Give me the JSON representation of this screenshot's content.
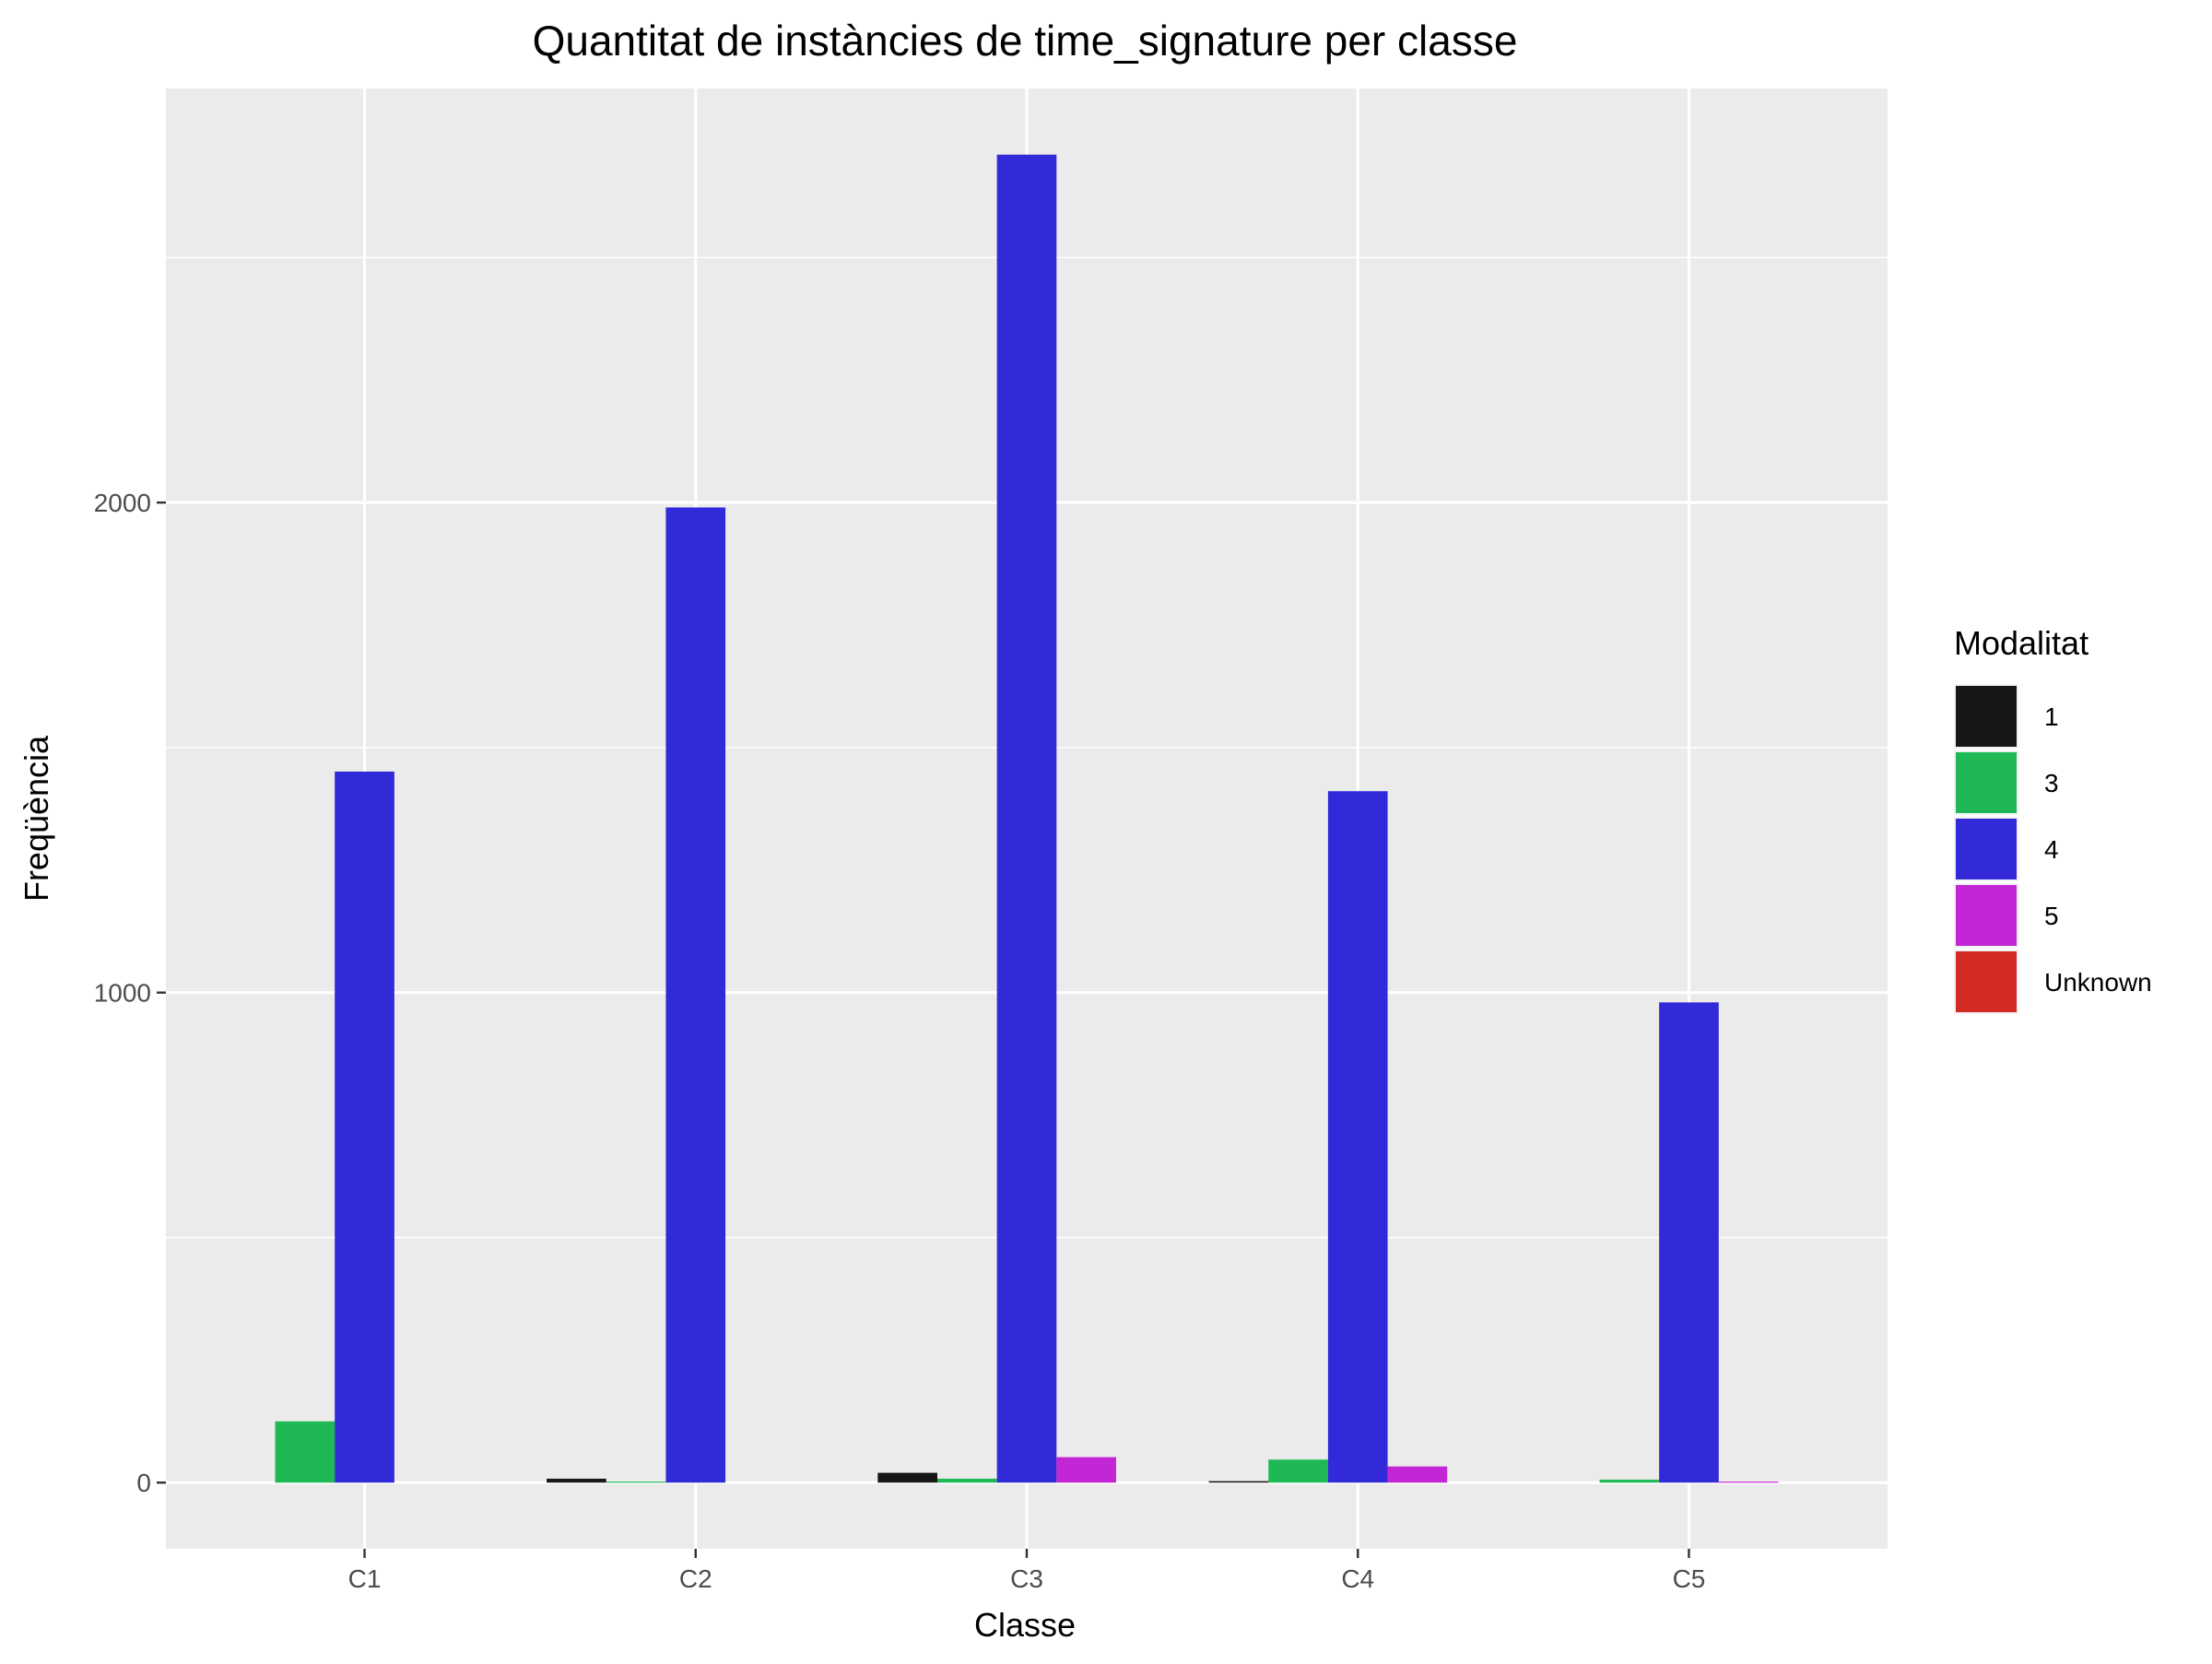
{
  "chart_data": {
    "type": "bar",
    "title": "Quantitat de instàncies de time_signature per classe",
    "xlabel": "Classe",
    "ylabel": "Freqüència",
    "categories": [
      "C1",
      "C2",
      "C3",
      "C4",
      "C5"
    ],
    "y_ticks": [
      0,
      1000,
      2000
    ],
    "ylim": [
      -135,
      2845
    ],
    "grid": true,
    "legend": {
      "title": "Modalitat",
      "position": "right"
    },
    "series": [
      {
        "name": "1",
        "color": "#181716",
        "values": [
          0,
          8,
          20,
          3,
          0
        ]
      },
      {
        "name": "3",
        "color": "#1eb955",
        "values": [
          125,
          2,
          8,
          47,
          6
        ]
      },
      {
        "name": "4",
        "color": "#3229d9",
        "values": [
          1451,
          1990,
          2710,
          1411,
          980
        ]
      },
      {
        "name": "5",
        "color": "#c326d4",
        "values": [
          0,
          0,
          52,
          33,
          2
        ]
      },
      {
        "name": "Unknown",
        "color": "#d12b24",
        "values": [
          0,
          0,
          0,
          0,
          0
        ]
      }
    ]
  }
}
